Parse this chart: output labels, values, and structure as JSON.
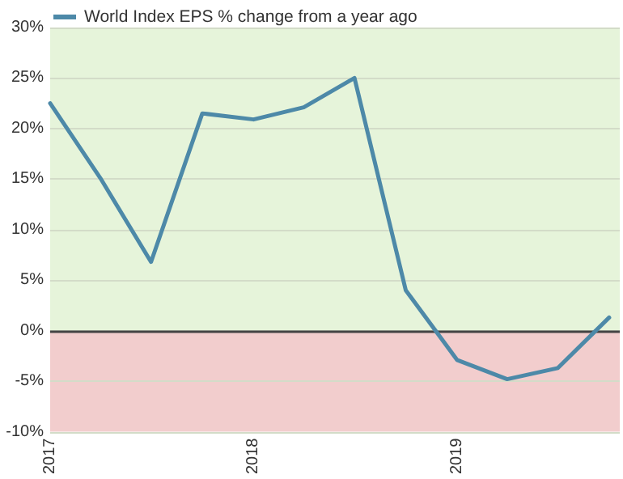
{
  "chart_data": {
    "type": "line",
    "x": [
      "2017-01",
      "2017-04",
      "2017-07",
      "2017-10",
      "2018-01",
      "2018-04",
      "2018-07",
      "2018-10",
      "2019-01",
      "2019-04",
      "2019-07",
      "2019-10"
    ],
    "series": [
      {
        "name": "World Index EPS % change from a year ago",
        "color": "#4d89a8",
        "values": [
          22.5,
          15.1,
          6.8,
          21.5,
          20.9,
          22.1,
          25,
          4,
          -2.9,
          -4.8,
          -3.7,
          1.3
        ]
      }
    ],
    "xlim": [
      "2017-01",
      "2019-10-20"
    ],
    "xticks": [
      "2017",
      "2018",
      "2019"
    ],
    "ylim": [
      -10,
      30
    ],
    "yticks": [
      {
        "value": -10,
        "label": "-10%"
      },
      {
        "value": -5,
        "label": "-5%"
      },
      {
        "value": 0,
        "label": "0%"
      },
      {
        "value": 5,
        "label": "5%"
      },
      {
        "value": 10,
        "label": "10%"
      },
      {
        "value": 15,
        "label": "15%"
      },
      {
        "value": 20,
        "label": "20%"
      },
      {
        "value": 25,
        "label": "25%"
      },
      {
        "value": 30,
        "label": "30%"
      }
    ],
    "bands": [
      {
        "axis": "y",
        "from": 0,
        "to": 30,
        "color": "#e6f4da"
      },
      {
        "axis": "y",
        "from": -10,
        "to": 0,
        "color": "#f2cdcd"
      }
    ],
    "ref_lines": [
      {
        "axis": "y",
        "value": 0,
        "color": "#444444"
      }
    ],
    "grid": "y",
    "legend": "top left",
    "marker": "none",
    "line_style": "solid"
  }
}
